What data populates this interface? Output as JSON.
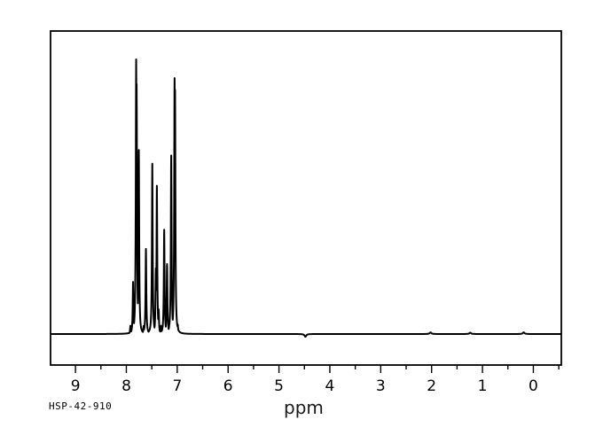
{
  "window": {
    "background": "#ffffff",
    "foreground": "#000000"
  },
  "chart_data": {
    "type": "line",
    "title": "",
    "xlabel": "ppm",
    "ylabel": "",
    "annotation": "HSP-42-910",
    "grid": false,
    "legend": false,
    "line_color": "#000000",
    "xlim": [
      9.49,
      -0.55
    ],
    "x_major_ticks": [
      9,
      8,
      7,
      6,
      5,
      4,
      3,
      2,
      1,
      0
    ],
    "x_minor_ticks": [
      8.5,
      7.5,
      6.5,
      5.5,
      4.5,
      3.5,
      2.5,
      1.5,
      0.5,
      -0.5
    ],
    "peaks_note": "1H NMR line positions in ppm with relative intensity (1.0 = tallest line at 7.81 ppm)",
    "peaks": [
      [
        7.92,
        0.03
      ],
      [
        7.868,
        0.19
      ],
      [
        7.807,
        1.0
      ],
      [
        7.798,
        0.91
      ],
      [
        7.755,
        0.67
      ],
      [
        7.66,
        0.03
      ],
      [
        7.615,
        0.31
      ],
      [
        7.49,
        0.62
      ],
      [
        7.42,
        0.24
      ],
      [
        7.4,
        0.54
      ],
      [
        7.365,
        0.09
      ],
      [
        7.32,
        0.03
      ],
      [
        7.256,
        0.38
      ],
      [
        7.2,
        0.255
      ],
      [
        7.155,
        0.035
      ],
      [
        7.118,
        0.65
      ],
      [
        7.052,
        0.932
      ],
      [
        7.043,
        0.89
      ],
      [
        6.99,
        0.035
      ]
    ],
    "baseline_marks": [
      [
        4.48,
        -0.01
      ],
      [
        2.02,
        0.006
      ],
      [
        1.24,
        0.005
      ],
      [
        0.19,
        0.006
      ]
    ]
  }
}
